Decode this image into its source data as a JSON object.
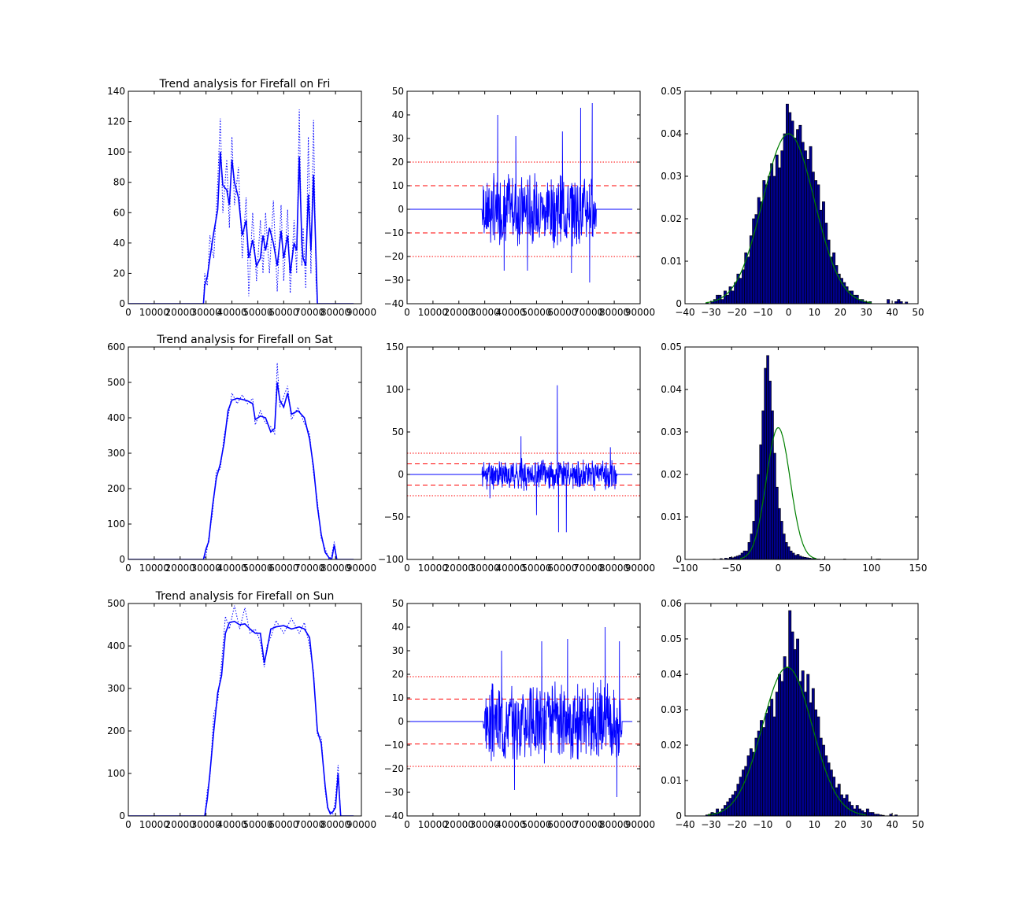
{
  "colors": {
    "series": "#0000ff",
    "threshold": "#ff0000",
    "fit": "#008000",
    "hist_fill": "#00008b",
    "hist_edge": "#000000",
    "axes": "#000000",
    "background": "#ffffff"
  },
  "chart_data": [
    {
      "id": "fri-trend",
      "type": "line",
      "row": 0,
      "col": 0,
      "title": "Trend analysis for Firefall on Fri",
      "xlim": [
        0,
        90000
      ],
      "ylim": [
        0,
        140
      ],
      "xticks": [
        0,
        10000,
        20000,
        30000,
        40000,
        50000,
        60000,
        70000,
        80000,
        90000
      ],
      "yticks": [
        0,
        20,
        40,
        60,
        80,
        100,
        120,
        140
      ],
      "series": [
        {
          "style": "solid",
          "x": [
            0,
            29000,
            29500,
            30500,
            31500,
            33000,
            34500,
            35500,
            36500,
            38000,
            39000,
            40000,
            41000,
            42500,
            44000,
            45500,
            46500,
            48000,
            49500,
            51000,
            52000,
            53000,
            54500,
            56000,
            57500,
            59000,
            60000,
            61500,
            62500,
            64000,
            65000,
            66000,
            67000,
            67500,
            68500,
            69500,
            70500,
            71500,
            72500,
            73000,
            87000
          ],
          "y": [
            0,
            0,
            12,
            18,
            30,
            47,
            62,
            100,
            78,
            75,
            65,
            95,
            80,
            70,
            45,
            55,
            30,
            42,
            25,
            30,
            45,
            35,
            50,
            40,
            25,
            48,
            30,
            45,
            20,
            40,
            35,
            97,
            40,
            30,
            25,
            72,
            35,
            85,
            30,
            0,
            0
          ]
        },
        {
          "style": "dotted",
          "x": [
            0,
            29000,
            29500,
            30500,
            31500,
            33000,
            34500,
            35500,
            36500,
            38000,
            39000,
            40000,
            41000,
            42500,
            44000,
            45500,
            46500,
            48000,
            49500,
            51000,
            52000,
            53000,
            54500,
            56000,
            57500,
            59000,
            60000,
            61500,
            62500,
            64000,
            65000,
            66000,
            67000,
            67500,
            68500,
            69500,
            70500,
            71500,
            72500,
            73000,
            87000
          ],
          "y": [
            0,
            0,
            20,
            12,
            45,
            30,
            80,
            122,
            60,
            95,
            50,
            110,
            65,
            90,
            30,
            70,
            5,
            60,
            15,
            55,
            20,
            60,
            20,
            68,
            8,
            65,
            15,
            62,
            7,
            55,
            20,
            128,
            25,
            50,
            10,
            110,
            20,
            121,
            15,
            0,
            0
          ]
        }
      ]
    },
    {
      "id": "fri-residual",
      "type": "line",
      "row": 0,
      "col": 1,
      "xlim": [
        0,
        90000
      ],
      "ylim": [
        -40,
        50
      ],
      "xticks": [
        0,
        10000,
        20000,
        30000,
        40000,
        50000,
        60000,
        70000,
        80000,
        90000
      ],
      "yticks": [
        -40,
        -30,
        -20,
        -10,
        0,
        10,
        20,
        30,
        40,
        50
      ],
      "thresholds": [
        {
          "y": 10,
          "style": "dashed"
        },
        {
          "y": -10,
          "style": "dashed"
        },
        {
          "y": 20,
          "style": "dotted"
        },
        {
          "y": -20,
          "style": "dotted"
        }
      ],
      "active_range": [
        29000,
        73000
      ],
      "amplitude": 12,
      "seed": 7,
      "spikes": [
        {
          "x": 35000,
          "y": 40
        },
        {
          "x": 37500,
          "y": -26
        },
        {
          "x": 42000,
          "y": 31
        },
        {
          "x": 60000,
          "y": 33
        },
        {
          "x": 67000,
          "y": 43
        },
        {
          "x": 71500,
          "y": 45
        },
        {
          "x": 70500,
          "y": -31
        },
        {
          "x": 63500,
          "y": -27
        },
        {
          "x": 46500,
          "y": -26
        }
      ]
    },
    {
      "id": "fri-hist",
      "type": "bar",
      "row": 0,
      "col": 2,
      "xlim": [
        -40,
        50
      ],
      "ylim": [
        0,
        0.05
      ],
      "xticks": [
        -40,
        -30,
        -20,
        -10,
        0,
        10,
        20,
        30,
        40,
        50
      ],
      "yticks": [
        0,
        0.01,
        0.02,
        0.03,
        0.04,
        0.05
      ],
      "bin_edges_range": [
        -32,
        46
      ],
      "bins": 78,
      "density": [
        0.0002,
        0,
        0.0005,
        0.001,
        0.002,
        0.002,
        0.001,
        0.003,
        0.002,
        0.004,
        0.003,
        0.005,
        0.007,
        0.006,
        0.008,
        0.012,
        0.011,
        0.016,
        0.02,
        0.021,
        0.025,
        0.024,
        0.029,
        0.028,
        0.03,
        0.033,
        0.03,
        0.035,
        0.032,
        0.036,
        0.04,
        0.047,
        0.045,
        0.043,
        0.039,
        0.041,
        0.042,
        0.038,
        0.036,
        0.034,
        0.037,
        0.031,
        0.029,
        0.028,
        0.022,
        0.024,
        0.019,
        0.015,
        0.011,
        0.012,
        0.009,
        0.007,
        0.006,
        0.005,
        0.004,
        0.003,
        0.003,
        0.002,
        0.002,
        0.001,
        0.001,
        0.0005,
        0.0003,
        0.0005,
        0,
        0,
        0,
        0,
        0,
        0,
        0.001,
        0,
        0,
        0.0005,
        0.001,
        0.0005,
        0,
        0.0004
      ],
      "fit": {
        "mu": 0,
        "sigma": 10,
        "peak": 0.04
      }
    },
    {
      "id": "sat-trend",
      "type": "line",
      "row": 1,
      "col": 0,
      "title": "Trend analysis for Firefall on Sat",
      "xlim": [
        0,
        90000
      ],
      "ylim": [
        0,
        600
      ],
      "xticks": [
        0,
        10000,
        20000,
        30000,
        40000,
        50000,
        60000,
        70000,
        80000,
        90000
      ],
      "yticks": [
        0,
        100,
        200,
        300,
        400,
        500,
        600
      ],
      "series": [
        {
          "style": "solid",
          "x": [
            0,
            29000,
            30000,
            31000,
            32500,
            34000,
            35500,
            37000,
            38500,
            40000,
            42000,
            44000,
            46000,
            48000,
            49000,
            51000,
            53000,
            55000,
            56500,
            57500,
            58500,
            60000,
            61500,
            63000,
            65500,
            68000,
            70000,
            71500,
            73000,
            74500,
            76000,
            77500,
            78500,
            79500,
            80500,
            87000
          ],
          "y": [
            0,
            0,
            30,
            50,
            150,
            230,
            270,
            330,
            420,
            450,
            455,
            452,
            448,
            440,
            395,
            405,
            400,
            360,
            370,
            500,
            450,
            430,
            470,
            410,
            420,
            400,
            340,
            260,
            150,
            70,
            20,
            5,
            0,
            40,
            0,
            0
          ]
        },
        {
          "style": "dotted",
          "x": [
            0,
            29000,
            30000,
            31000,
            32500,
            34000,
            35500,
            37000,
            38500,
            40000,
            42000,
            44000,
            46000,
            48000,
            49000,
            51000,
            53000,
            55000,
            56500,
            57500,
            58500,
            60000,
            61500,
            63000,
            65500,
            68000,
            70000,
            71500,
            73000,
            74500,
            76000,
            77500,
            78500,
            79500,
            80500,
            87000
          ],
          "y": [
            0,
            0,
            10,
            60,
            130,
            250,
            255,
            350,
            400,
            470,
            440,
            465,
            440,
            455,
            380,
            420,
            385,
            375,
            355,
            555,
            430,
            460,
            490,
            395,
            430,
            385,
            355,
            245,
            165,
            60,
            30,
            0,
            10,
            50,
            0,
            0
          ]
        }
      ]
    },
    {
      "id": "sat-residual",
      "type": "line",
      "row": 1,
      "col": 1,
      "xlim": [
        0,
        90000
      ],
      "ylim": [
        -100,
        150
      ],
      "xticks": [
        0,
        10000,
        20000,
        30000,
        40000,
        50000,
        60000,
        70000,
        80000,
        90000
      ],
      "yticks": [
        -100,
        -50,
        0,
        50,
        100,
        150
      ],
      "thresholds": [
        {
          "y": 12.5,
          "style": "dashed"
        },
        {
          "y": -12.5,
          "style": "dashed"
        },
        {
          "y": 25,
          "style": "dotted"
        },
        {
          "y": -25,
          "style": "dotted"
        }
      ],
      "active_range": [
        29000,
        81000
      ],
      "amplitude": 14,
      "seed": 11,
      "spikes": [
        {
          "x": 58000,
          "y": 105
        },
        {
          "x": 58500,
          "y": -68
        },
        {
          "x": 61500,
          "y": -68
        },
        {
          "x": 50000,
          "y": -48
        },
        {
          "x": 44000,
          "y": 45
        },
        {
          "x": 78500,
          "y": 32
        },
        {
          "x": 32000,
          "y": -28
        }
      ]
    },
    {
      "id": "sat-hist",
      "type": "bar",
      "row": 1,
      "col": 2,
      "xlim": [
        -100,
        150
      ],
      "ylim": [
        0,
        0.05
      ],
      "xticks": [
        -100,
        -50,
        0,
        50,
        100,
        150
      ],
      "yticks": [
        0,
        0.01,
        0.02,
        0.03,
        0.04,
        0.05
      ],
      "bin_edges_range": [
        -70,
        110
      ],
      "bins": 72,
      "density": [
        0.0001,
        0,
        0,
        0.0002,
        0,
        0.0003,
        0.0002,
        0.0005,
        0.0004,
        0.0006,
        0.0008,
        0.001,
        0.0015,
        0.002,
        0.002,
        0.004,
        0.006,
        0.009,
        0.014,
        0.02,
        0.027,
        0.035,
        0.045,
        0.048,
        0.042,
        0.035,
        0.025,
        0.017,
        0.012,
        0.009,
        0.006,
        0.004,
        0.003,
        0.002,
        0.0015,
        0.001,
        0.0012,
        0.0008,
        0.0006,
        0.0005,
        0.0004,
        0.0003,
        0.0002,
        0.0002,
        0.0001,
        0.0001,
        0,
        0.0001,
        0,
        0,
        0,
        0,
        0,
        0,
        0,
        0,
        0.0001,
        0,
        0,
        0,
        0,
        0,
        0,
        0,
        0,
        0,
        0,
        0,
        0,
        0,
        0.0001,
        0.0001
      ],
      "fit": {
        "mu": 0,
        "sigma": 12.8,
        "peak": 0.031
      }
    },
    {
      "id": "sun-trend",
      "type": "line",
      "row": 2,
      "col": 0,
      "title": "Trend analysis for Firefall on Sun",
      "xlim": [
        0,
        90000
      ],
      "ylim": [
        0,
        500
      ],
      "xticks": [
        0,
        10000,
        20000,
        30000,
        40000,
        50000,
        60000,
        70000,
        80000,
        90000
      ],
      "yticks": [
        0,
        100,
        200,
        300,
        400,
        500
      ],
      "series": [
        {
          "style": "solid",
          "x": [
            0,
            29500,
            30500,
            31500,
            33000,
            34500,
            36000,
            37500,
            39000,
            41000,
            43000,
            45000,
            47000,
            49000,
            51000,
            52500,
            53500,
            55000,
            57000,
            60000,
            63000,
            66000,
            68000,
            70000,
            71500,
            73000,
            74500,
            76000,
            77000,
            78000,
            79000,
            80000,
            81000,
            81500,
            82000,
            87000
          ],
          "y": [
            0,
            0,
            40,
            100,
            200,
            290,
            330,
            430,
            455,
            458,
            450,
            452,
            440,
            430,
            430,
            360,
            390,
            440,
            445,
            448,
            440,
            445,
            440,
            420,
            330,
            200,
            170,
            70,
            20,
            5,
            10,
            20,
            100,
            50,
            0,
            0
          ]
        },
        {
          "style": "dotted",
          "x": [
            0,
            29500,
            30500,
            31500,
            33000,
            34500,
            36000,
            37500,
            39000,
            41000,
            43000,
            45000,
            47000,
            49000,
            51000,
            52500,
            53500,
            55000,
            57000,
            60000,
            63000,
            66000,
            68000,
            70000,
            71500,
            73000,
            74500,
            76000,
            77000,
            78000,
            79000,
            80000,
            81000,
            81500,
            82000,
            87000
          ],
          "y": [
            0,
            0,
            60,
            90,
            240,
            270,
            360,
            470,
            440,
            495,
            440,
            490,
            430,
            440,
            410,
            350,
            400,
            420,
            460,
            430,
            465,
            430,
            455,
            400,
            340,
            190,
            185,
            60,
            15,
            10,
            5,
            40,
            120,
            60,
            0,
            0
          ]
        }
      ]
    },
    {
      "id": "sun-residual",
      "type": "line",
      "row": 2,
      "col": 1,
      "xlim": [
        0,
        90000
      ],
      "ylim": [
        -40,
        50
      ],
      "xticks": [
        0,
        10000,
        20000,
        30000,
        40000,
        50000,
        60000,
        70000,
        80000,
        90000
      ],
      "yticks": [
        -40,
        -30,
        -20,
        -10,
        0,
        10,
        20,
        30,
        40,
        50
      ],
      "thresholds": [
        {
          "y": 9.5,
          "style": "dashed"
        },
        {
          "y": -9.5,
          "style": "dashed"
        },
        {
          "y": 19,
          "style": "dotted"
        },
        {
          "y": -19,
          "style": "dotted"
        }
      ],
      "active_range": [
        29500,
        83000
      ],
      "amplitude": 13,
      "seed": 3,
      "spikes": [
        {
          "x": 76500,
          "y": 40
        },
        {
          "x": 81000,
          "y": -32
        },
        {
          "x": 82000,
          "y": 34
        },
        {
          "x": 41500,
          "y": -29
        },
        {
          "x": 52000,
          "y": 34
        },
        {
          "x": 62000,
          "y": 35
        },
        {
          "x": 36500,
          "y": 30
        }
      ]
    },
    {
      "id": "sun-hist",
      "type": "bar",
      "row": 2,
      "col": 2,
      "xlim": [
        -40,
        50
      ],
      "ylim": [
        0,
        0.06
      ],
      "xticks": [
        -40,
        -30,
        -20,
        -10,
        0,
        10,
        20,
        30,
        40,
        50
      ],
      "yticks": [
        0,
        0.01,
        0.02,
        0.03,
        0.04,
        0.05,
        0.06
      ],
      "bin_edges_range": [
        -32,
        42
      ],
      "bins": 74,
      "density": [
        0.0003,
        0.0005,
        0.001,
        0.0008,
        0.002,
        0.001,
        0.002,
        0.003,
        0.004,
        0.005,
        0.006,
        0.007,
        0.009,
        0.011,
        0.013,
        0.014,
        0.017,
        0.019,
        0.018,
        0.022,
        0.024,
        0.027,
        0.025,
        0.029,
        0.031,
        0.033,
        0.028,
        0.035,
        0.04,
        0.038,
        0.045,
        0.042,
        0.058,
        0.052,
        0.047,
        0.05,
        0.038,
        0.041,
        0.035,
        0.04,
        0.032,
        0.036,
        0.03,
        0.028,
        0.022,
        0.02,
        0.017,
        0.015,
        0.013,
        0.011,
        0.008,
        0.009,
        0.006,
        0.005,
        0.006,
        0.004,
        0.003,
        0.002,
        0.003,
        0.002,
        0.0015,
        0.001,
        0.002,
        0.001,
        0.001,
        0.0005,
        0.0005,
        0.0003,
        0.0002,
        0,
        0,
        0.0005,
        0,
        0.0003
      ],
      "fit": {
        "mu": -0.5,
        "sigma": 9.6,
        "peak": 0.042
      }
    }
  ]
}
